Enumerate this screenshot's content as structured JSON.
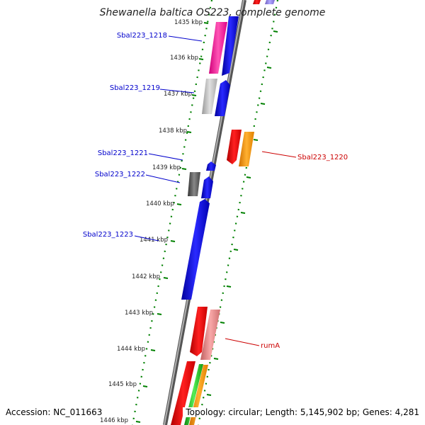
{
  "title": "Shewanella baltica OS223, complete genome",
  "footer": {
    "accession": "Accession: NC_011663",
    "summary": "Topology: circular; Length: 5,145,902 bp; Genes: 4,281"
  },
  "colors": {
    "backbone": "#808080",
    "ruler_dots": "#008000",
    "left_label": "#0000cc",
    "right_label": "#cc0000",
    "blue": "#0000ee",
    "magenta": "#ff2aa0",
    "red": "#ee0000",
    "orange": "#ff9900",
    "gray": "#bbbbbb",
    "darkgray": "#555555",
    "pink": "#ee8080",
    "green": "#22bb22"
  },
  "ruler": {
    "ticks": [
      {
        "kbp": 1435,
        "label": "1435 kbp"
      },
      {
        "kbp": 1436,
        "label": "1436 kbp"
      },
      {
        "kbp": 1437,
        "label": "1437 kbp"
      },
      {
        "kbp": 1438,
        "label": "1438 kbp"
      },
      {
        "kbp": 1439,
        "label": "1439 kbp"
      },
      {
        "kbp": 1440,
        "label": "1440 kbp"
      },
      {
        "kbp": 1441,
        "label": "1441 kbp"
      },
      {
        "kbp": 1442,
        "label": "1442 kbp"
      },
      {
        "kbp": 1443,
        "label": "1443 kbp"
      },
      {
        "kbp": 1444,
        "label": "1444 kbp"
      },
      {
        "kbp": 1445,
        "label": "1445 kbp"
      },
      {
        "kbp": 1446,
        "label": "1446 kbp"
      }
    ]
  },
  "gene_labels": [
    {
      "name": "Sbal223_1218",
      "side": "left"
    },
    {
      "name": "Sbal223_1219",
      "side": "left"
    },
    {
      "name": "Sbal223_1221",
      "side": "left"
    },
    {
      "name": "Sbal223_1222",
      "side": "left"
    },
    {
      "name": "Sbal223_1223",
      "side": "left"
    },
    {
      "name": "Sbal223_1220",
      "side": "right"
    },
    {
      "name": "rumA",
      "side": "right"
    }
  ]
}
